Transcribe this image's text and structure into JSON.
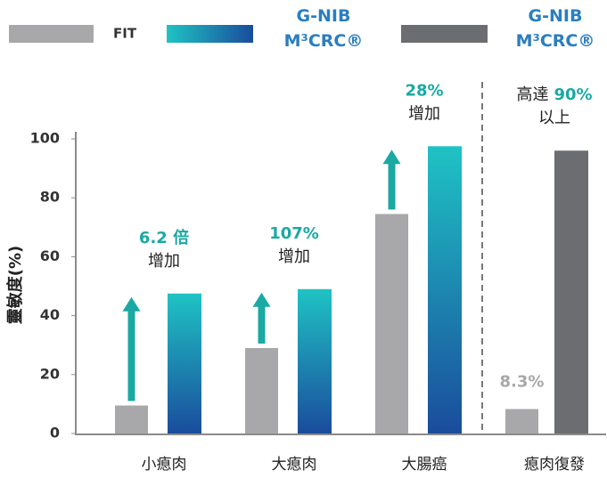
{
  "chart_data": {
    "type": "bar",
    "y_label": "靈敏度(%)",
    "categories": [
      "小瘜肉",
      "大瘜肉",
      "大腸癌",
      "瘜肉復發"
    ],
    "series": [
      {
        "name": "FIT",
        "color": "#a8a8ab",
        "values": [
          9.5,
          29,
          74.5,
          8.3
        ],
        "value_labels": [
          null,
          null,
          null,
          "8.3%"
        ]
      },
      {
        "name": "G-NIB M³CRC®",
        "color": "#1ab8bf",
        "values": [
          47.5,
          49,
          97.5,
          null
        ]
      },
      {
        "name": "G-NIB M³CRC®",
        "color": "#6c6d70",
        "values": [
          null,
          null,
          null,
          96
        ]
      }
    ],
    "annotations": [
      {
        "highlight": "6.2 倍",
        "text": "增加"
      },
      {
        "highlight": "107%",
        "text": "增加"
      },
      {
        "highlight": "28%",
        "text": "增加"
      },
      {
        "prefix": "高達",
        "highlight": "90%",
        "text": "以上"
      }
    ],
    "ylim": [
      0,
      100
    ],
    "yticks": [
      0,
      20,
      40,
      60,
      80,
      100
    ],
    "grid": false
  }
}
